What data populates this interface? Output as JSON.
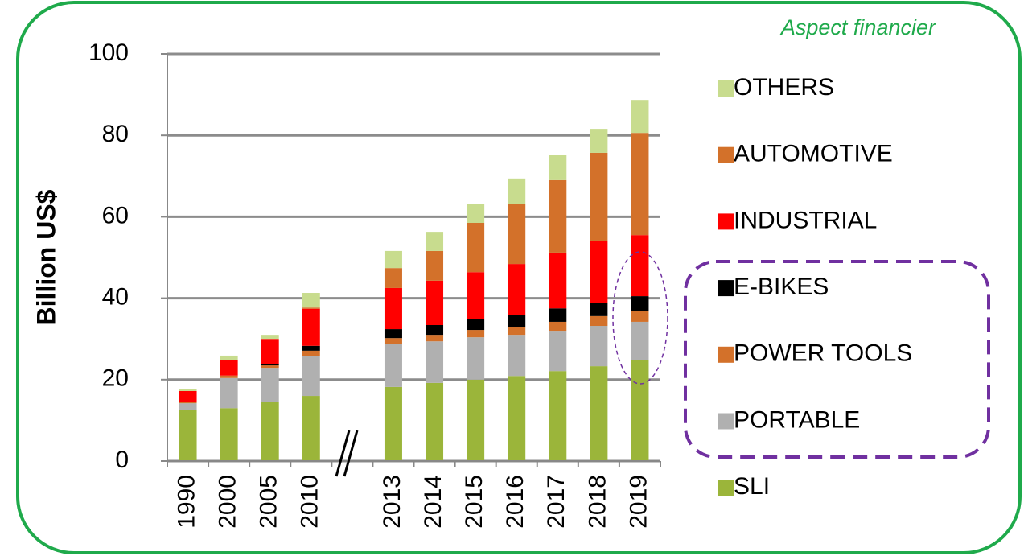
{
  "chart_data": {
    "type": "stacked_bar",
    "annotation": "Aspect financier",
    "y_label": "Billion US$",
    "categories": [
      "1990",
      "2000",
      "2005",
      "2010",
      null,
      "2013",
      "2014",
      "2015",
      "2016",
      "2017",
      "2018",
      "2019"
    ],
    "series": [
      {
        "name": "SLI",
        "color": "#9bb53a",
        "values": [
          12.5,
          13,
          14.6,
          16,
          null,
          18.2,
          19.2,
          20,
          20.9,
          22.1,
          23.3,
          24.9
        ]
      },
      {
        "name": "PORTABLE",
        "color": "#b0b0b0",
        "values": [
          1.7,
          7.4,
          8.3,
          9.7,
          null,
          10.5,
          10.2,
          10.4,
          10.1,
          9.9,
          9.9,
          9.3
        ]
      },
      {
        "name": "POWER TOOLS",
        "color": "#d3712a",
        "values": [
          0.3,
          0.6,
          0.6,
          1.4,
          null,
          1.5,
          1.6,
          1.8,
          2,
          2.2,
          2.4,
          2.6
        ]
      },
      {
        "name": "E-BIKES",
        "color": "#000000",
        "values": [
          0,
          0,
          0.4,
          1.2,
          null,
          2.2,
          2.4,
          2.6,
          2.8,
          3.3,
          3.3,
          3.7
        ]
      },
      {
        "name": "INDUSTRIAL",
        "color": "#ff0000",
        "values": [
          2.7,
          3.9,
          6.1,
          9.1,
          null,
          10.1,
          10.9,
          11.6,
          12.6,
          13.7,
          15.1,
          15
        ]
      },
      {
        "name": "AUTOMOTIVE",
        "color": "#d3712a",
        "values": [
          0,
          0,
          0,
          0.3,
          null,
          4.9,
          7.3,
          12.1,
          14.8,
          17.8,
          21.7,
          25.1
        ]
      },
      {
        "name": "OTHERS",
        "color": "#c8dc8e",
        "values": [
          0.4,
          1,
          1,
          3.6,
          null,
          4.2,
          4.7,
          4.7,
          6.2,
          6.1,
          5.9,
          8.1
        ]
      }
    ],
    "ylim": [
      0,
      100
    ],
    "yticks": [
      0,
      20,
      40,
      60,
      80,
      100
    ],
    "grid": true,
    "legend": "right"
  }
}
